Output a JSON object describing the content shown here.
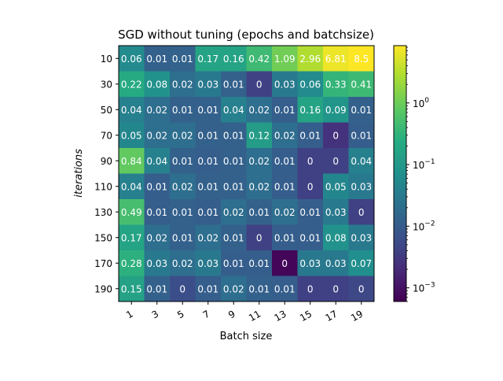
{
  "chart_data": {
    "type": "heatmap",
    "title": "SGD without tuning (epochs and batchsize)",
    "xlabel": "Batch size",
    "ylabel": "iterations",
    "x_categories": [
      "1",
      "3",
      "5",
      "7",
      "9",
      "11",
      "13",
      "15",
      "17",
      "19"
    ],
    "y_categories": [
      "10",
      "30",
      "50",
      "70",
      "90",
      "110",
      "130",
      "150",
      "170",
      "190"
    ],
    "values": [
      [
        0.06,
        0.01,
        0.01,
        0.17,
        0.16,
        0.42,
        1.09,
        2.96,
        6.81,
        8.5
      ],
      [
        0.22,
        0.08,
        0.02,
        0.03,
        0.01,
        0.0,
        0.03,
        0.06,
        0.33,
        0.41
      ],
      [
        0.04,
        0.02,
        0.01,
        0.01,
        0.04,
        0.02,
        0.01,
        0.16,
        0.09,
        0.01
      ],
      [
        0.05,
        0.02,
        0.02,
        0.01,
        0.01,
        0.12,
        0.02,
        0.01,
        0.0,
        0.01
      ],
      [
        0.84,
        0.04,
        0.01,
        0.01,
        0.01,
        0.02,
        0.01,
        0.0,
        0.0,
        0.04
      ],
      [
        0.04,
        0.01,
        0.02,
        0.01,
        0.01,
        0.02,
        0.01,
        0.0,
        0.05,
        0.03
      ],
      [
        0.49,
        0.01,
        0.01,
        0.01,
        0.02,
        0.01,
        0.02,
        0.01,
        0.03,
        0.0
      ],
      [
        0.17,
        0.02,
        0.01,
        0.02,
        0.01,
        0.0,
        0.01,
        0.01,
        0.08,
        0.03
      ],
      [
        0.28,
        0.03,
        0.02,
        0.03,
        0.01,
        0.01,
        0.0,
        0.03,
        0.03,
        0.07
      ],
      [
        0.15,
        0.01,
        0.0,
        0.01,
        0.02,
        0.01,
        0.01,
        0.0,
        0.0,
        0.0
      ]
    ],
    "fill_values": [
      [
        0.06,
        0.012,
        0.013,
        0.17,
        0.16,
        0.42,
        1.09,
        2.96,
        6.81,
        8.5
      ],
      [
        0.22,
        0.08,
        0.02,
        0.03,
        0.012,
        0.004,
        0.03,
        0.06,
        0.33,
        0.41
      ],
      [
        0.04,
        0.02,
        0.012,
        0.012,
        0.04,
        0.02,
        0.011,
        0.16,
        0.09,
        0.012
      ],
      [
        0.05,
        0.02,
        0.02,
        0.012,
        0.012,
        0.12,
        0.02,
        0.011,
        0.0025,
        0.011
      ],
      [
        0.84,
        0.04,
        0.012,
        0.011,
        0.012,
        0.02,
        0.011,
        0.004,
        0.004,
        0.04
      ],
      [
        0.04,
        0.011,
        0.02,
        0.012,
        0.012,
        0.02,
        0.011,
        0.004,
        0.05,
        0.03
      ],
      [
        0.49,
        0.011,
        0.012,
        0.011,
        0.02,
        0.012,
        0.02,
        0.011,
        0.03,
        0.004
      ],
      [
        0.17,
        0.02,
        0.012,
        0.02,
        0.012,
        0.004,
        0.011,
        0.011,
        0.08,
        0.03
      ],
      [
        0.28,
        0.03,
        0.02,
        0.03,
        0.011,
        0.011,
        0.0007,
        0.03,
        0.03,
        0.07
      ],
      [
        0.15,
        0.012,
        0.006,
        0.011,
        0.02,
        0.012,
        0.011,
        0.004,
        0.004,
        0.005
      ]
    ],
    "colormap": "viridis",
    "color_scale": "log",
    "color_range": [
      0.0006,
      8.5
    ],
    "colorbar": {
      "ticks": [
        0.001,
        0.01,
        0.1,
        1
      ],
      "tick_labels": [
        "10",
        "10",
        "10",
        "10"
      ],
      "tick_exponents": [
        "−3",
        "−2",
        "−1",
        "0"
      ]
    },
    "grid": false,
    "legend": "none"
  }
}
